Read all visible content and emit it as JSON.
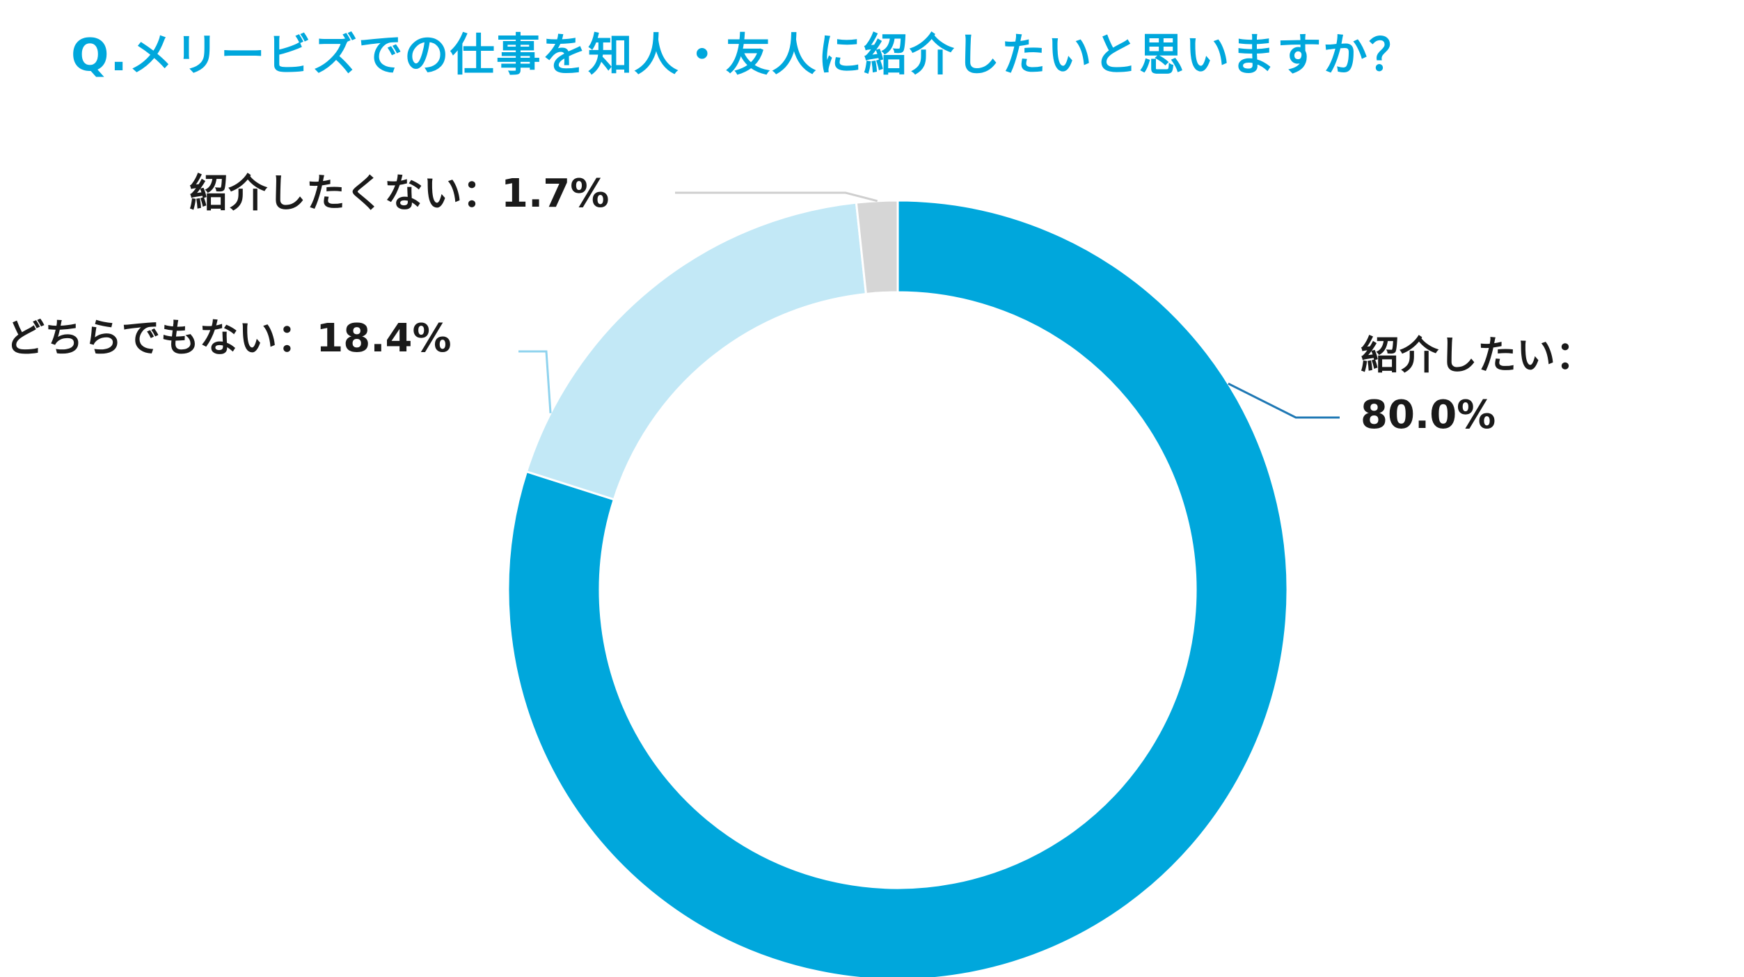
{
  "title": "Q.メリービズでの仕事を知人・友人に紹介したいと思いますか？",
  "chart_data": {
    "type": "pie",
    "title": "Q.メリービズでの仕事を知人・友人に紹介したいと思いますか？",
    "categories": [
      "紹介したい",
      "どちらでもない",
      "紹介したくない"
    ],
    "values": [
      80.0,
      18.4,
      1.7
    ],
    "unit": "%",
    "colors": [
      "#00a7dc",
      "#c2e8f6",
      "#d6d6d6"
    ],
    "data_labels": [
      {
        "line1": "紹介したい：",
        "line2": "80.0%"
      },
      {
        "line1": "どちらでもない：18.4%",
        "line2": ""
      },
      {
        "line1": "紹介したくない：1.7%",
        "line2": ""
      }
    ],
    "legend": "none"
  }
}
